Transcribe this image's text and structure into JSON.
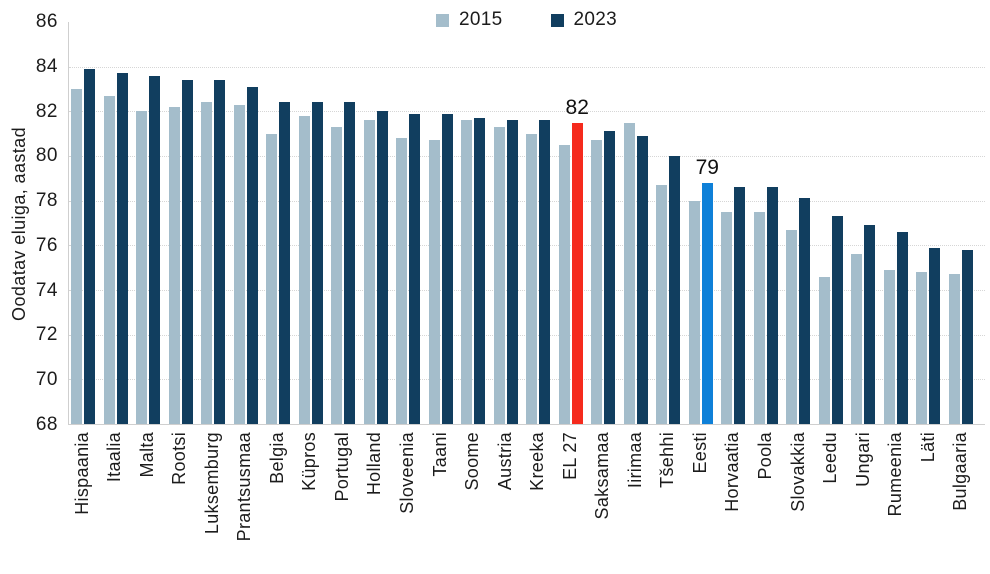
{
  "y_axis_title": "Oodatav eluiga, aastad",
  "annotations": {
    "el27_label": "82",
    "eesti_label": "79"
  },
  "colors": {
    "bar_2015": "#a4bdcb",
    "bar_2023": "#113e5f",
    "highlight_el27": "#f52a1d",
    "highlight_eesti": "#0e80d8",
    "gridline": "#d6d6d6",
    "axis_line": "#cfcfcf",
    "text": "#1c1c1c"
  },
  "chart_data": {
    "type": "bar",
    "title": "",
    "xlabel": "",
    "ylabel": "Oodatav eluiga, aastad",
    "ylim": [
      68,
      86
    ],
    "yticks": [
      86,
      84,
      82,
      80,
      78,
      76,
      74,
      72,
      70,
      68
    ],
    "gridline_values": [
      84,
      82,
      80,
      78,
      76,
      74,
      72,
      70
    ],
    "grid": "horizontal dotted",
    "legend_position": "top-center",
    "categories": [
      "Hispaania",
      "Itaalia",
      "Malta",
      "Rootsi",
      "Luksemburg",
      "Prantsusmaa",
      "Belgia",
      "Küpros",
      "Portugal",
      "Holland",
      "Sloveenia",
      "Taani",
      "Soome",
      "Austria",
      "Kreeka",
      "EL 27",
      "Saksamaa",
      "Iirimaa",
      "Tšehhi",
      "Eesti",
      "Horvaatia",
      "Poola",
      "Slovakkia",
      "Leedu",
      "Ungari",
      "Rumeenia",
      "Läti",
      "Bulgaaria"
    ],
    "series": [
      {
        "name": "2015",
        "color": "#a4bdcb",
        "values": [
          83.0,
          82.7,
          82.0,
          82.2,
          82.4,
          82.3,
          81.0,
          81.8,
          81.3,
          81.6,
          80.8,
          80.7,
          81.6,
          81.3,
          81.0,
          80.5,
          80.7,
          81.5,
          78.7,
          78.0,
          77.5,
          77.5,
          76.7,
          74.6,
          75.6,
          74.9,
          74.8,
          74.7
        ]
      },
      {
        "name": "2023",
        "color": "#113e5f",
        "values": [
          83.9,
          83.7,
          83.6,
          83.4,
          83.4,
          83.1,
          82.4,
          82.4,
          82.4,
          82.0,
          81.9,
          81.9,
          81.7,
          81.6,
          81.6,
          81.5,
          81.1,
          80.9,
          80.0,
          78.8,
          78.6,
          78.6,
          78.1,
          77.3,
          76.9,
          76.6,
          75.9,
          75.8
        ]
      }
    ],
    "highlights": [
      {
        "category": "EL 27",
        "series": "2023",
        "color": "#f52a1d",
        "label": "82"
      },
      {
        "category": "Eesti",
        "series": "2023",
        "color": "#0e80d8",
        "label": "79"
      }
    ]
  }
}
